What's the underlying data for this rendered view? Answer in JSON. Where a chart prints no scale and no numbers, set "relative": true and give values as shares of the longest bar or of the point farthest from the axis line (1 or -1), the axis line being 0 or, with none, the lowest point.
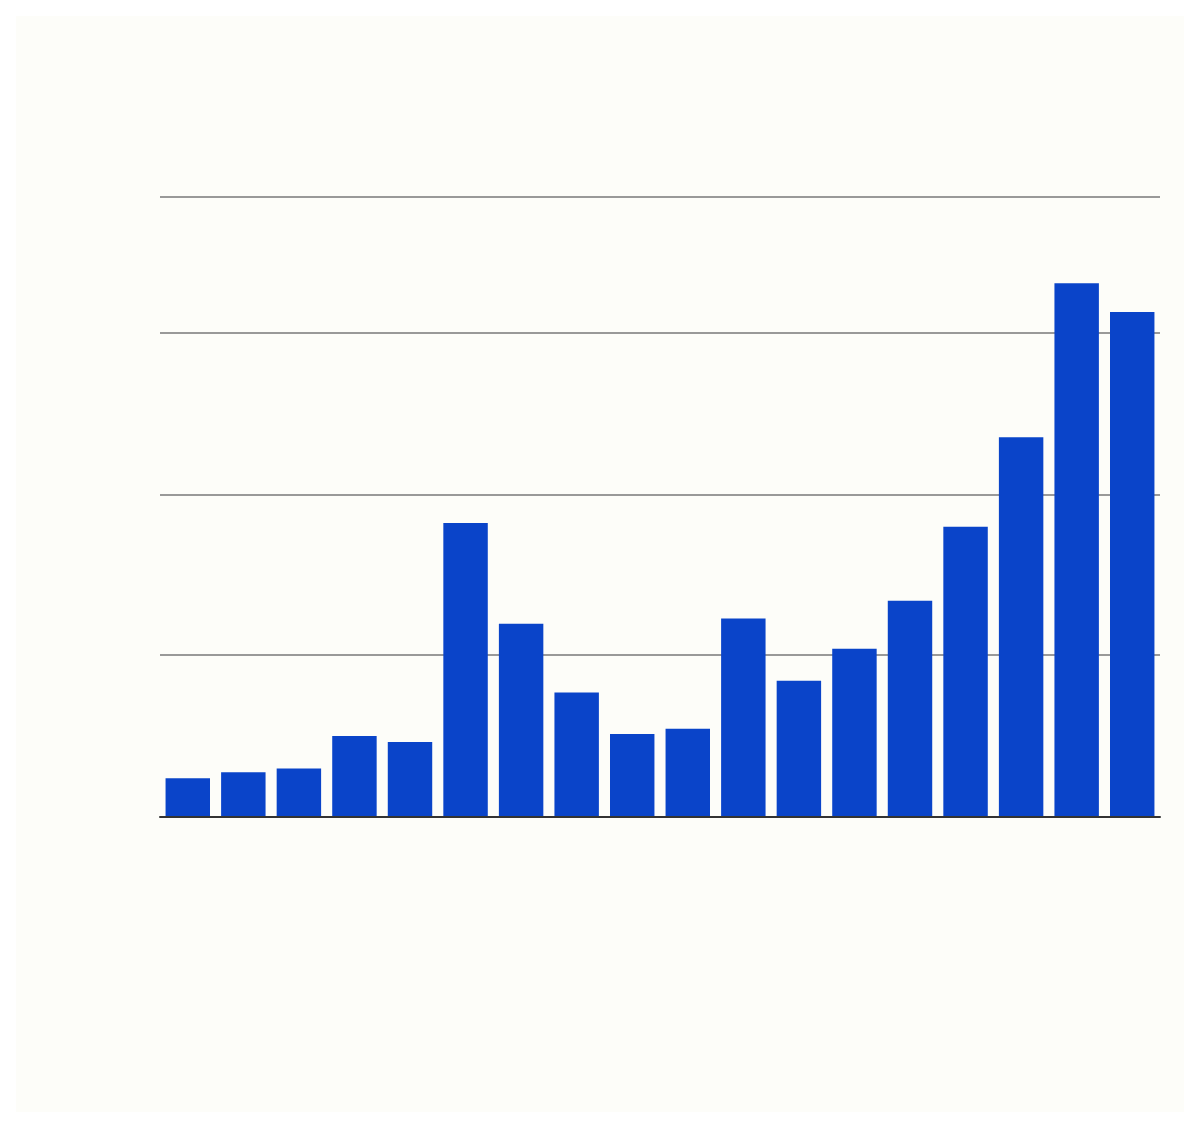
{
  "chart_data": {
    "type": "bar",
    "relative": true,
    "grid": true,
    "color": "#0a44c9",
    "categories": [
      null,
      null,
      null,
      null,
      null,
      null,
      null,
      null,
      null,
      null,
      null,
      null,
      null,
      null,
      null,
      null,
      null,
      null
    ],
    "values": [
      0.071,
      0.082,
      0.089,
      0.15,
      0.139,
      0.55,
      0.361,
      0.232,
      0.154,
      0.164,
      0.371,
      0.254,
      0.314,
      0.404,
      0.543,
      0.711,
      1,
      0.946
    ]
  }
}
